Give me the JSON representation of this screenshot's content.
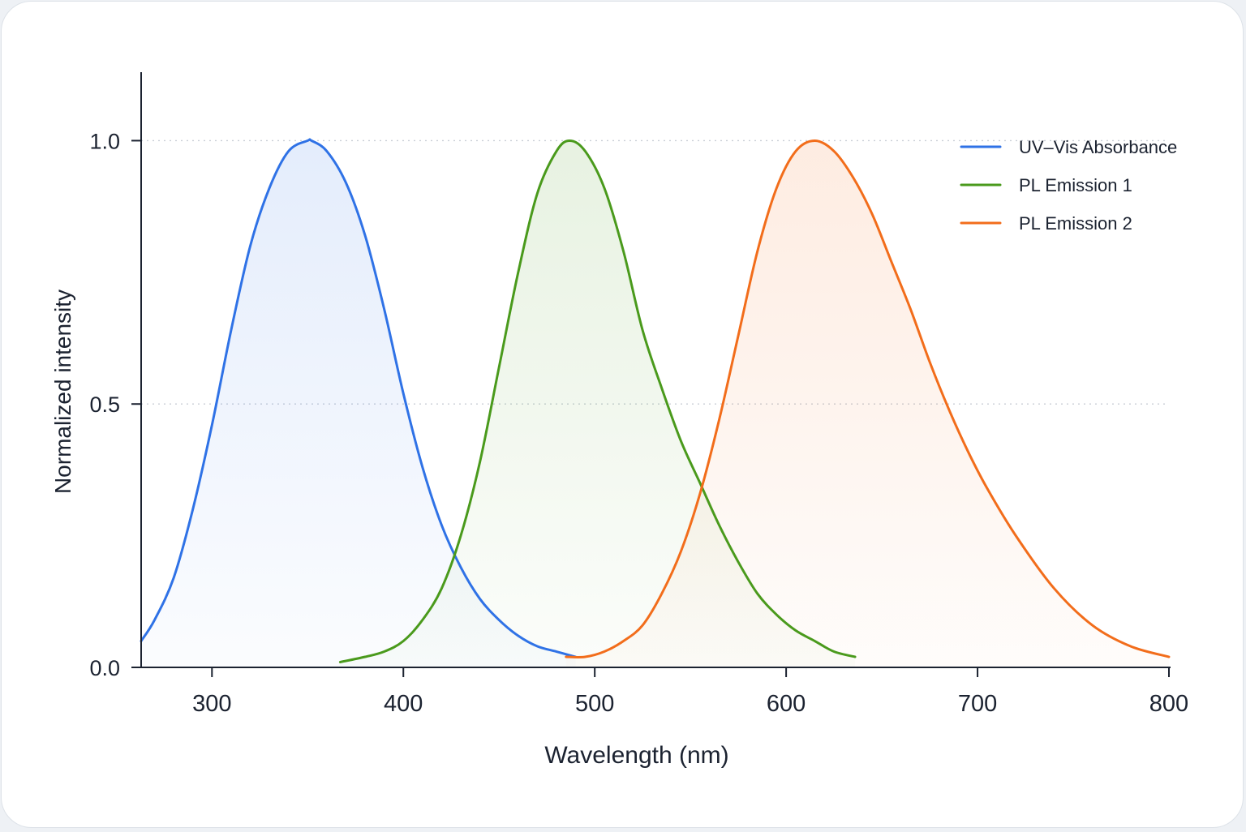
{
  "chart_data": {
    "type": "line",
    "title": "",
    "xlabel": "Wavelength (nm)",
    "ylabel": "Normalized intensity",
    "xlim": [
      263,
      800
    ],
    "ylim": [
      0,
      1.13
    ],
    "x_ticks": [
      300,
      400,
      500,
      600,
      700,
      800
    ],
    "x_tick_labels": [
      "300",
      "400",
      "500",
      "600",
      "700",
      "800"
    ],
    "y_ticks": [
      0.0,
      0.5,
      1.0
    ],
    "y_tick_labels": [
      "0.0",
      "0.5",
      "1.0"
    ],
    "grid": "horizontal dotted at 0.5 and 1.0",
    "legend_position": "top-right",
    "series": [
      {
        "name": "UV–Vis Absorbance",
        "color": "#2f72e6",
        "fill": true,
        "x": [
          263,
          270,
          280,
          290,
          300,
          310,
          320,
          330,
          340,
          350,
          352,
          360,
          370,
          380,
          390,
          400,
          410,
          420,
          430,
          440,
          450,
          460,
          470,
          480,
          490
        ],
        "y": [
          0.05,
          0.09,
          0.17,
          0.3,
          0.46,
          0.64,
          0.8,
          0.91,
          0.98,
          1.0,
          1.0,
          0.98,
          0.92,
          0.82,
          0.68,
          0.52,
          0.38,
          0.27,
          0.19,
          0.13,
          0.09,
          0.06,
          0.04,
          0.03,
          0.02
        ]
      },
      {
        "name": "PL Emission 1",
        "color": "#4a9a1c",
        "fill": true,
        "x": [
          367,
          380,
          390,
          400,
          410,
          420,
          430,
          440,
          450,
          460,
          470,
          480,
          487,
          495,
          505,
          515,
          525,
          535,
          545,
          555,
          565,
          575,
          585,
          595,
          605,
          615,
          625,
          636
        ],
        "y": [
          0.01,
          0.02,
          0.03,
          0.05,
          0.09,
          0.15,
          0.25,
          0.39,
          0.57,
          0.75,
          0.9,
          0.98,
          1.0,
          0.98,
          0.91,
          0.79,
          0.64,
          0.53,
          0.43,
          0.35,
          0.27,
          0.2,
          0.14,
          0.1,
          0.07,
          0.05,
          0.03,
          0.02
        ]
      },
      {
        "name": "PL Emission 2",
        "color": "#f26d1b",
        "fill": true,
        "x": [
          485,
          495,
          505,
          515,
          525,
          535,
          545,
          555,
          565,
          575,
          585,
          595,
          605,
          615,
          625,
          635,
          645,
          655,
          665,
          675,
          685,
          695,
          705,
          720,
          740,
          760,
          780,
          800
        ],
        "y": [
          0.02,
          0.02,
          0.03,
          0.05,
          0.08,
          0.14,
          0.22,
          0.33,
          0.47,
          0.63,
          0.79,
          0.91,
          0.98,
          1.0,
          0.98,
          0.93,
          0.86,
          0.77,
          0.68,
          0.58,
          0.49,
          0.41,
          0.34,
          0.25,
          0.15,
          0.08,
          0.04,
          0.02
        ]
      }
    ]
  }
}
